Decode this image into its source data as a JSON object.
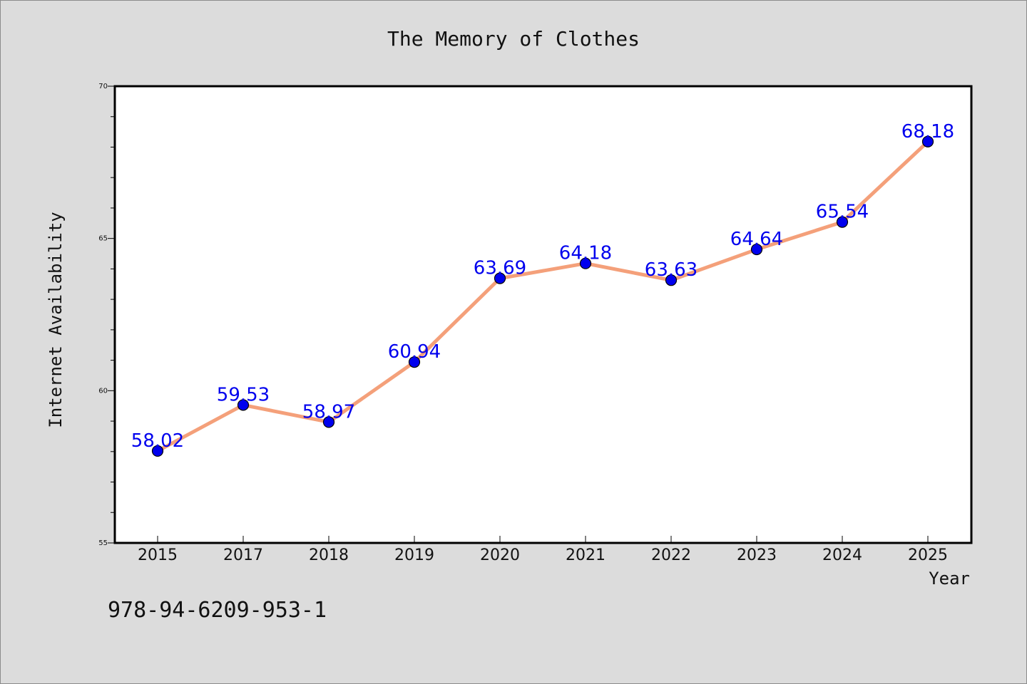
{
  "chart_data": {
    "type": "line",
    "title": "The Memory of Clothes",
    "xlabel": "Year",
    "ylabel": "Internet Availability",
    "categories": [
      "2015",
      "2017",
      "2018",
      "2019",
      "2020",
      "2021",
      "2022",
      "2023",
      "2024",
      "2025"
    ],
    "values": [
      58.02,
      59.53,
      58.97,
      60.94,
      63.69,
      64.18,
      63.63,
      64.64,
      65.54,
      68.18
    ],
    "data_labels": [
      "58.02",
      "59.53",
      "58.97",
      "60.94",
      "63.69",
      "64.18",
      "63.63",
      "64.64",
      "65.54",
      "68.18"
    ],
    "ylim": [
      55,
      70
    ],
    "yticks": [
      "55",
      "60",
      "65",
      "70"
    ],
    "grid": false,
    "line_color": "#f4a07a",
    "marker_color": "#0000ee",
    "label_color": "#0000ee"
  },
  "footer": {
    "isbn": "978-94-6209-953-1"
  }
}
